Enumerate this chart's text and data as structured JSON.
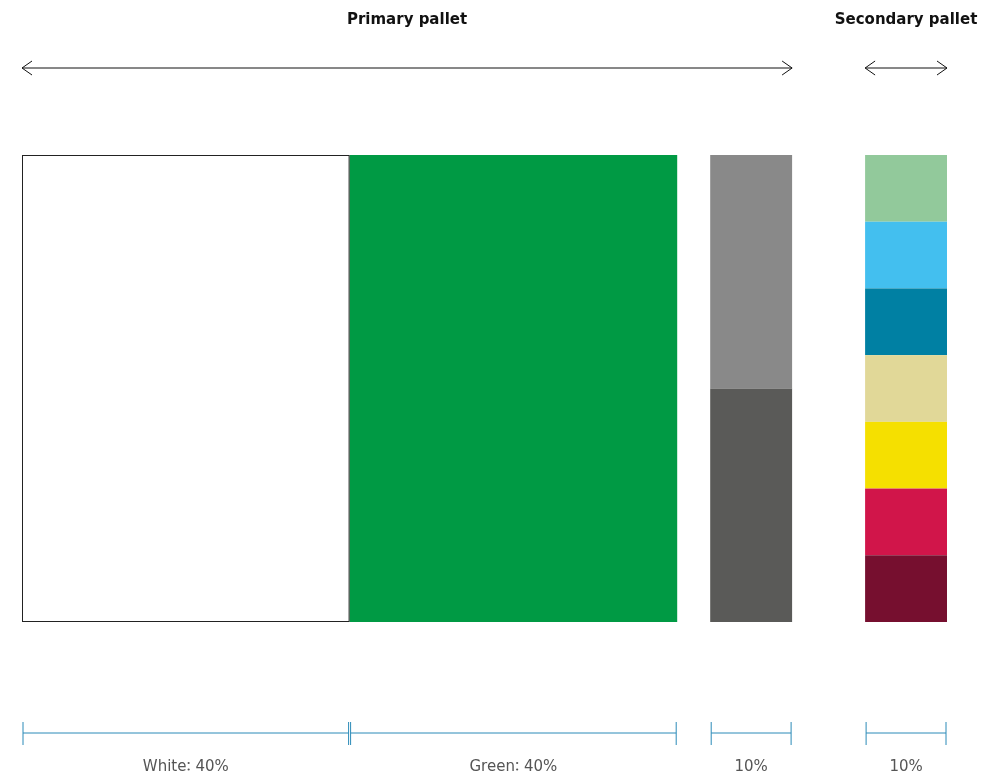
{
  "chart_data": {
    "type": "other",
    "categories": [
      "White",
      "Green",
      null,
      null
    ],
    "values": [
      40,
      40,
      10,
      10
    ],
    "value_labels": [
      "40%",
      "40%",
      "10%",
      "10%"
    ],
    "colors": [
      [
        "#ffffff"
      ],
      [
        "#009a44"
      ],
      [
        "#898989",
        "#5a5a58"
      ],
      [
        "#92c99b",
        "#43bfef",
        "#0080a3",
        "#e1d898",
        "#f5e000",
        "#d1154a",
        "#760f2f"
      ]
    ],
    "annotations": [
      "Primary pallet",
      "Secondary pallet"
    ]
  }
}
